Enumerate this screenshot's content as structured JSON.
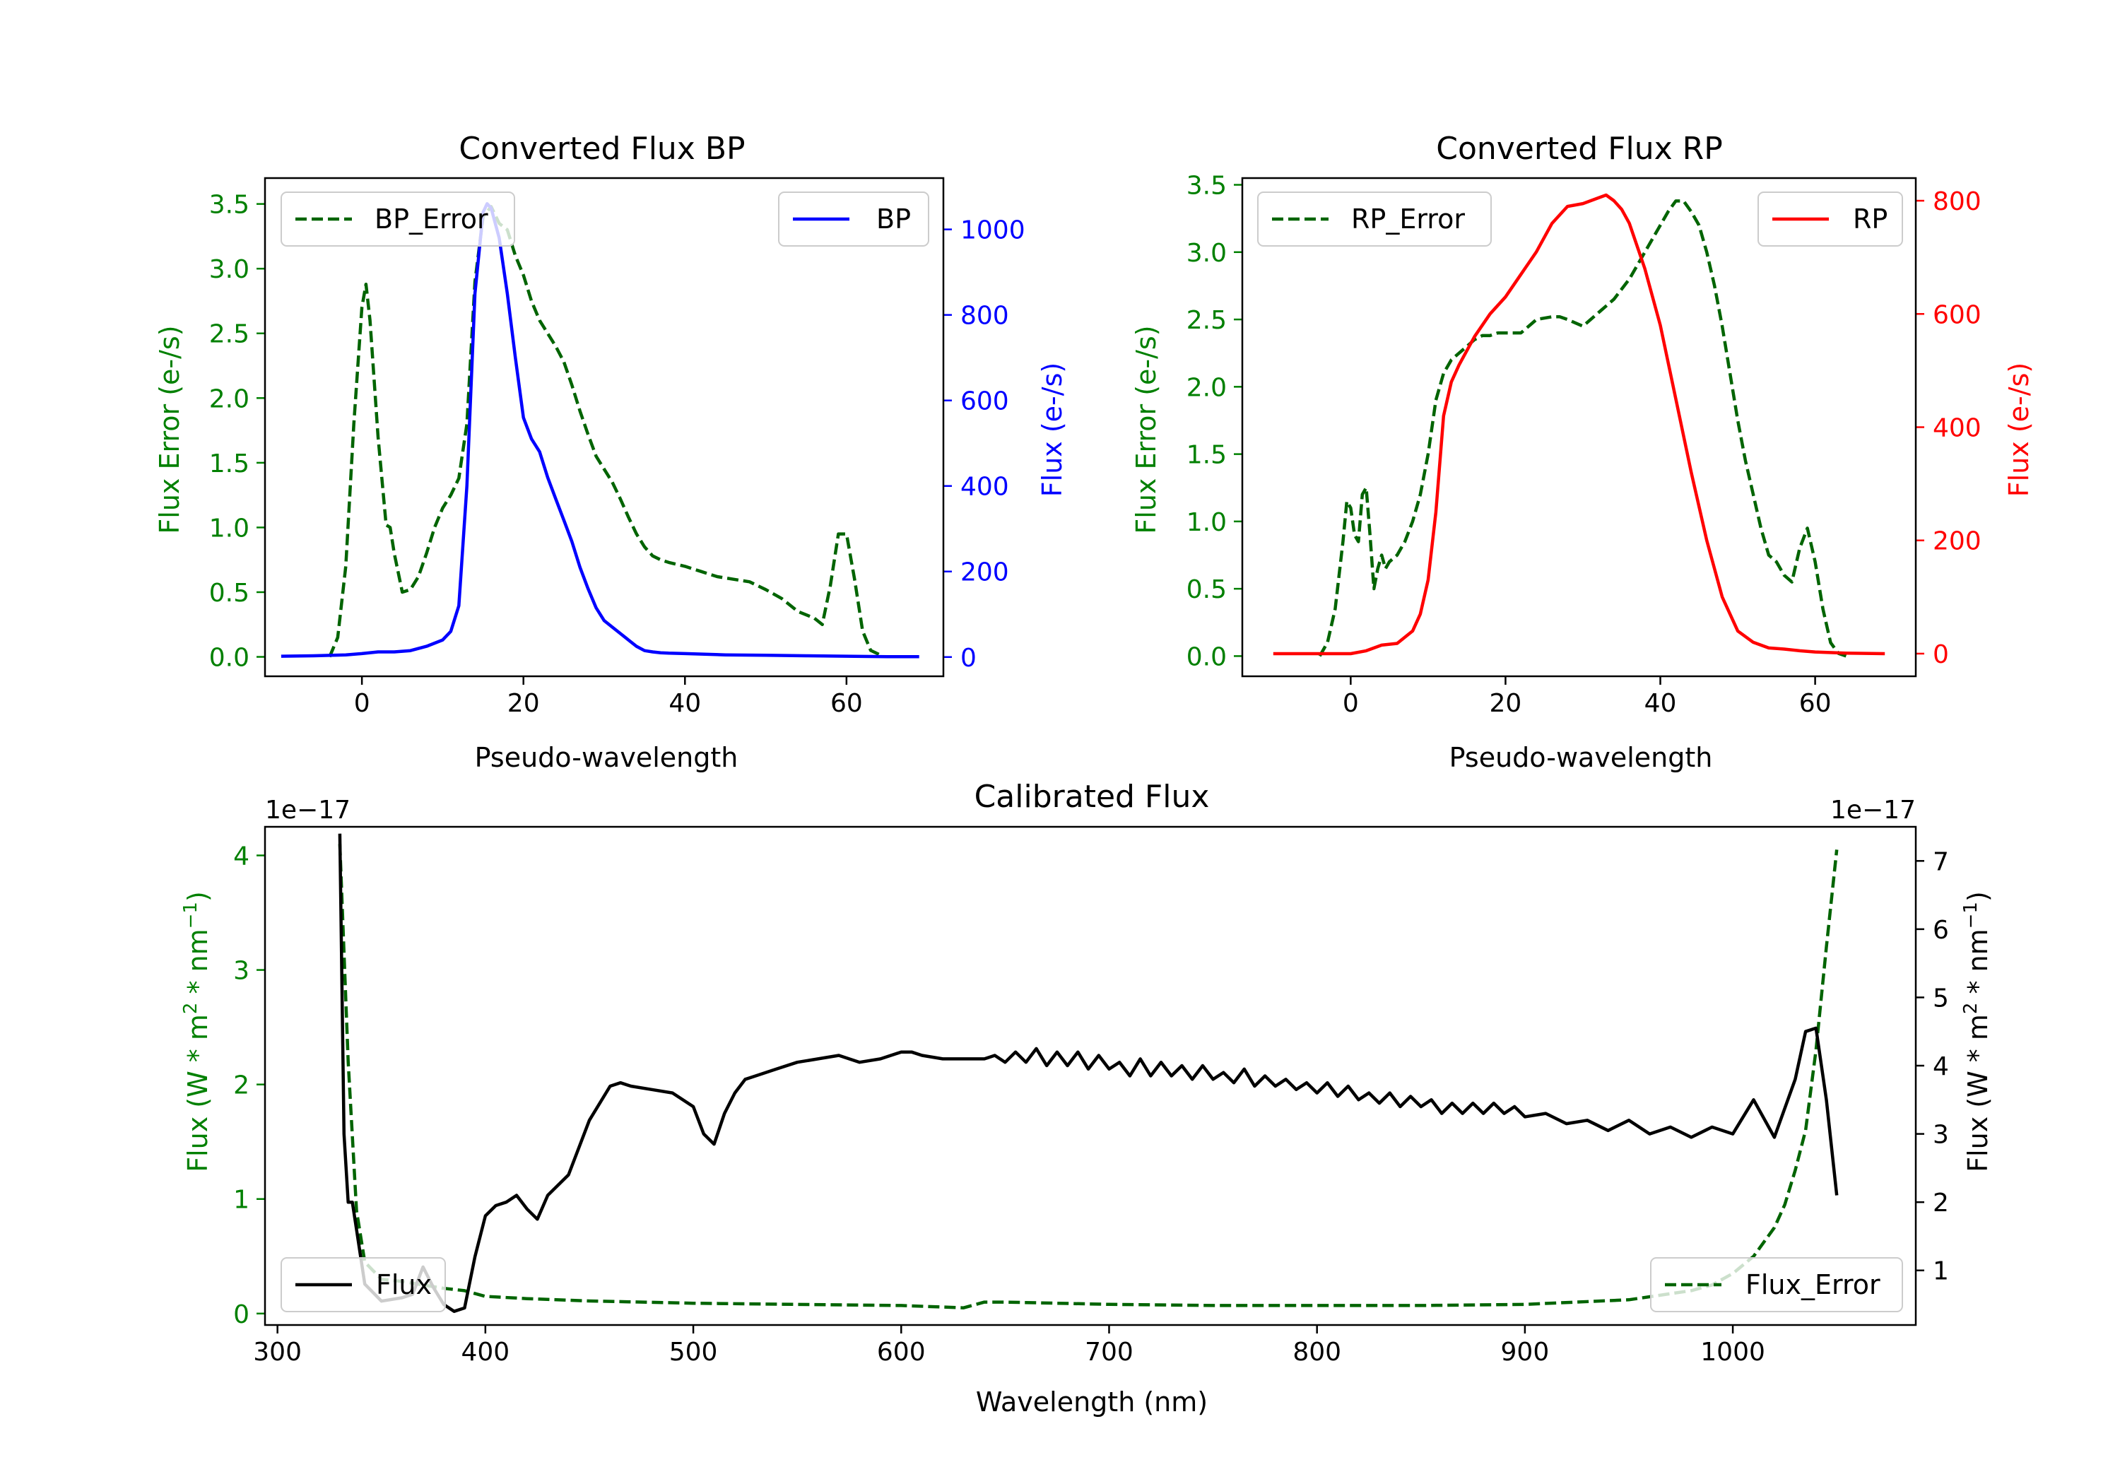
{
  "colors": {
    "bp": "#0000ff",
    "rp": "#ff0000",
    "error": "#006400",
    "flux": "#000000",
    "ticks_error": "#008000"
  },
  "chart_data": [
    {
      "id": "bp",
      "type": "line",
      "title": "Converted Flux BP",
      "xlabel": "Pseudo-wavelength",
      "ylabel_left": "Flux Error (e-/s)",
      "ylabel_right": "Flux (e-/s)",
      "xlim": [
        -12,
        72
      ],
      "ylim_left": [
        -0.15,
        3.7
      ],
      "ylim_right": [
        -45,
        1120
      ],
      "xticks": [
        0,
        20,
        40,
        60
      ],
      "yticks_left": [
        "0.0",
        "0.5",
        "1.0",
        "1.5",
        "2.0",
        "2.5",
        "3.0",
        "3.5"
      ],
      "yticks_right": [
        "0",
        "200",
        "400",
        "600",
        "800",
        "1000"
      ],
      "legend_left": "BP_Error",
      "legend_right": "BP",
      "series": [
        {
          "name": "BP_Error",
          "axis": "left",
          "style": "dashed",
          "x": [
            -4,
            -3,
            -2,
            -1,
            0,
            0.5,
            1,
            2,
            3,
            3.5,
            4,
            5,
            6,
            7,
            8,
            9,
            10,
            11,
            12,
            13,
            14,
            15,
            16,
            17,
            18,
            19,
            20,
            21,
            22,
            23,
            24,
            25,
            26,
            27,
            28,
            29,
            30,
            31,
            32,
            33,
            34,
            35,
            36,
            37,
            38,
            40,
            42,
            44,
            46,
            48,
            50,
            52,
            54,
            56,
            57,
            58,
            59,
            60,
            61,
            62,
            63,
            64
          ],
          "y": [
            0.0,
            0.15,
            0.7,
            1.8,
            2.7,
            2.88,
            2.6,
            1.7,
            1.02,
            1.0,
            0.8,
            0.5,
            0.52,
            0.62,
            0.8,
            1.0,
            1.15,
            1.25,
            1.38,
            1.8,
            2.9,
            3.4,
            3.48,
            3.35,
            3.3,
            3.1,
            2.95,
            2.75,
            2.6,
            2.5,
            2.4,
            2.28,
            2.1,
            1.9,
            1.72,
            1.55,
            1.45,
            1.35,
            1.22,
            1.08,
            0.95,
            0.85,
            0.78,
            0.75,
            0.73,
            0.7,
            0.66,
            0.62,
            0.6,
            0.58,
            0.52,
            0.45,
            0.35,
            0.3,
            0.25,
            0.55,
            0.95,
            0.95,
            0.6,
            0.2,
            0.05,
            0.02
          ]
        },
        {
          "name": "BP",
          "axis": "right",
          "style": "solid",
          "x": [
            -10,
            -6,
            -2,
            0,
            2,
            4,
            6,
            8,
            10,
            11,
            12,
            13,
            14,
            15,
            15.5,
            16,
            17,
            18,
            19,
            20,
            21,
            22,
            23,
            24,
            25,
            26,
            27,
            28,
            29,
            30,
            31,
            32,
            33,
            34,
            35,
            36,
            37,
            38,
            40,
            45,
            50,
            55,
            60,
            65,
            69
          ],
          "y": [
            2,
            3,
            5,
            8,
            12,
            12,
            15,
            25,
            40,
            60,
            120,
            400,
            850,
            1040,
            1060,
            1050,
            980,
            850,
            700,
            560,
            510,
            480,
            420,
            370,
            320,
            270,
            210,
            160,
            115,
            85,
            70,
            55,
            40,
            25,
            15,
            12,
            10,
            9,
            8,
            5,
            4,
            3,
            2,
            1,
            1
          ]
        }
      ]
    },
    {
      "id": "rp",
      "type": "line",
      "title": "Converted Flux RP",
      "xlabel": "Pseudo-wavelength",
      "ylabel_left": "Flux Error (e-/s)",
      "ylabel_right": "Flux (e-/s)",
      "xlim": [
        -14,
        73
      ],
      "ylim_left": [
        -0.15,
        3.55
      ],
      "ylim_right": [
        -40,
        840
      ],
      "xticks": [
        0,
        20,
        40,
        60
      ],
      "yticks_left": [
        "0.0",
        "0.5",
        "1.0",
        "1.5",
        "2.0",
        "2.5",
        "3.0",
        "3.5"
      ],
      "yticks_right": [
        "0",
        "200",
        "400",
        "600",
        "800"
      ],
      "legend_left": "RP_Error",
      "legend_right": "RP",
      "series": [
        {
          "name": "RP_Error",
          "axis": "left",
          "style": "dashed",
          "x": [
            -4,
            -3,
            -2,
            -1,
            -0.5,
            0,
            0.5,
            1,
            1.5,
            2,
            2.5,
            3,
            3.5,
            4,
            4.5,
            5,
            6,
            7,
            8,
            9,
            10,
            11,
            12,
            13,
            14,
            15,
            16,
            17,
            18,
            19,
            20,
            22,
            24,
            26,
            27,
            28,
            30,
            32,
            34,
            36,
            38,
            40,
            41,
            42,
            43,
            44,
            45,
            46,
            47,
            48,
            49,
            50,
            51,
            52,
            53,
            54,
            55,
            56,
            57,
            58,
            59,
            60,
            61,
            62,
            63,
            64
          ],
          "y": [
            0.0,
            0.1,
            0.35,
            0.85,
            1.15,
            1.1,
            0.9,
            0.85,
            1.2,
            1.25,
            0.9,
            0.5,
            0.65,
            0.75,
            0.65,
            0.7,
            0.75,
            0.85,
            1.0,
            1.2,
            1.5,
            1.9,
            2.1,
            2.2,
            2.25,
            2.3,
            2.35,
            2.38,
            2.38,
            2.4,
            2.4,
            2.4,
            2.5,
            2.52,
            2.52,
            2.5,
            2.45,
            2.55,
            2.65,
            2.8,
            3.0,
            3.2,
            3.3,
            3.38,
            3.38,
            3.3,
            3.2,
            3.0,
            2.75,
            2.45,
            2.1,
            1.75,
            1.45,
            1.2,
            0.95,
            0.75,
            0.7,
            0.6,
            0.55,
            0.8,
            0.95,
            0.7,
            0.35,
            0.1,
            0.02,
            0.0
          ]
        },
        {
          "name": "RP",
          "axis": "right",
          "style": "solid",
          "x": [
            -10,
            -4,
            0,
            2,
            4,
            6,
            8,
            9,
            10,
            11,
            12,
            13,
            14,
            16,
            18,
            20,
            22,
            24,
            26,
            28,
            30,
            32,
            33,
            34,
            35,
            36,
            38,
            40,
            42,
            44,
            46,
            48,
            50,
            52,
            54,
            56,
            58,
            60,
            64,
            69
          ],
          "y": [
            0,
            0,
            0,
            5,
            15,
            18,
            40,
            70,
            130,
            250,
            420,
            480,
            510,
            560,
            600,
            630,
            670,
            710,
            760,
            790,
            795,
            805,
            810,
            800,
            785,
            760,
            680,
            580,
            450,
            320,
            200,
            100,
            40,
            20,
            10,
            8,
            5,
            3,
            1,
            0
          ]
        }
      ]
    },
    {
      "id": "calibrated",
      "type": "line",
      "title": "Calibrated Flux",
      "xlabel": "Wavelength (nm)",
      "ylabel_left": "Flux (W * m$^2$ * nm$^{-1}$)",
      "ylabel_right": "Flux (W * m$^2$ * nm$^{-1}$)",
      "ylabel_text": "Flux (W * m",
      "ylabel_sup1": "2",
      "ylabel_mid": " * nm",
      "ylabel_sup2": "−1",
      "ylabel_end": ")",
      "offset_left": "1e−17",
      "offset_right": "1e−17",
      "xlim": [
        294,
        1088
      ],
      "ylim_left": [
        -0.1,
        4.25
      ],
      "ylim_right": [
        0.2,
        7.5
      ],
      "xticks": [
        300,
        400,
        500,
        600,
        700,
        800,
        900,
        1000
      ],
      "yticks_left": [
        "0",
        "1",
        "2",
        "3",
        "4"
      ],
      "yticks_right": [
        "1",
        "2",
        "3",
        "4",
        "5",
        "6",
        "7"
      ],
      "legend_left": "Flux",
      "legend_right": "Flux_Error",
      "series": [
        {
          "name": "Flux_Error",
          "axis": "left",
          "style": "dashed",
          "x": [
            330,
            334,
            338,
            342,
            350,
            360,
            370,
            380,
            390,
            400,
            420,
            450,
            500,
            550,
            600,
            630,
            640,
            650,
            700,
            750,
            800,
            850,
            900,
            950,
            980,
            990,
            1000,
            1010,
            1020,
            1025,
            1030,
            1035,
            1040,
            1045,
            1050
          ],
          "y": [
            4.1,
            2.2,
            0.9,
            0.45,
            0.3,
            0.28,
            0.25,
            0.22,
            0.2,
            0.15,
            0.13,
            0.11,
            0.09,
            0.08,
            0.07,
            0.05,
            0.1,
            0.1,
            0.08,
            0.07,
            0.07,
            0.07,
            0.08,
            0.12,
            0.2,
            0.25,
            0.35,
            0.5,
            0.75,
            0.95,
            1.25,
            1.6,
            2.3,
            3.2,
            4.05
          ]
        },
        {
          "name": "Flux",
          "axis": "right",
          "style": "solid",
          "x": [
            330,
            332,
            334,
            336,
            338,
            342,
            350,
            360,
            365,
            370,
            375,
            380,
            385,
            390,
            395,
            400,
            405,
            410,
            415,
            420,
            425,
            430,
            440,
            450,
            460,
            465,
            470,
            480,
            490,
            500,
            505,
            510,
            515,
            520,
            525,
            530,
            540,
            550,
            560,
            570,
            580,
            590,
            600,
            605,
            610,
            620,
            630,
            640,
            645,
            650,
            655,
            660,
            665,
            670,
            675,
            680,
            685,
            690,
            695,
            700,
            705,
            710,
            715,
            720,
            725,
            730,
            735,
            740,
            745,
            750,
            755,
            760,
            765,
            770,
            775,
            780,
            785,
            790,
            795,
            800,
            805,
            810,
            815,
            820,
            825,
            830,
            835,
            840,
            845,
            850,
            855,
            860,
            865,
            870,
            875,
            880,
            885,
            890,
            895,
            900,
            910,
            920,
            930,
            940,
            950,
            960,
            970,
            980,
            990,
            1000,
            1010,
            1020,
            1030,
            1035,
            1040,
            1045,
            1050
          ],
          "y": [
            7.4,
            3.0,
            2.0,
            2.0,
            1.6,
            0.8,
            0.55,
            0.6,
            0.65,
            1.05,
            0.75,
            0.5,
            0.4,
            0.45,
            1.2,
            1.8,
            1.95,
            2.0,
            2.1,
            1.9,
            1.75,
            2.1,
            2.4,
            3.2,
            3.7,
            3.75,
            3.7,
            3.65,
            3.6,
            3.4,
            3.0,
            2.85,
            3.3,
            3.6,
            3.8,
            3.85,
            3.95,
            4.05,
            4.1,
            4.15,
            4.05,
            4.1,
            4.2,
            4.2,
            4.15,
            4.1,
            4.1,
            4.1,
            4.15,
            4.05,
            4.2,
            4.05,
            4.25,
            4.0,
            4.2,
            4.0,
            4.2,
            3.95,
            4.15,
            3.95,
            4.05,
            3.85,
            4.1,
            3.85,
            4.05,
            3.85,
            4.0,
            3.8,
            4.0,
            3.8,
            3.9,
            3.75,
            3.95,
            3.7,
            3.85,
            3.7,
            3.8,
            3.65,
            3.75,
            3.6,
            3.75,
            3.55,
            3.7,
            3.5,
            3.6,
            3.45,
            3.6,
            3.4,
            3.55,
            3.4,
            3.5,
            3.3,
            3.45,
            3.3,
            3.45,
            3.3,
            3.45,
            3.3,
            3.4,
            3.25,
            3.3,
            3.15,
            3.2,
            3.05,
            3.2,
            3.0,
            3.1,
            2.95,
            3.1,
            3.0,
            3.5,
            2.95,
            3.8,
            4.5,
            4.55,
            3.5,
            2.1
          ]
        }
      ]
    }
  ]
}
